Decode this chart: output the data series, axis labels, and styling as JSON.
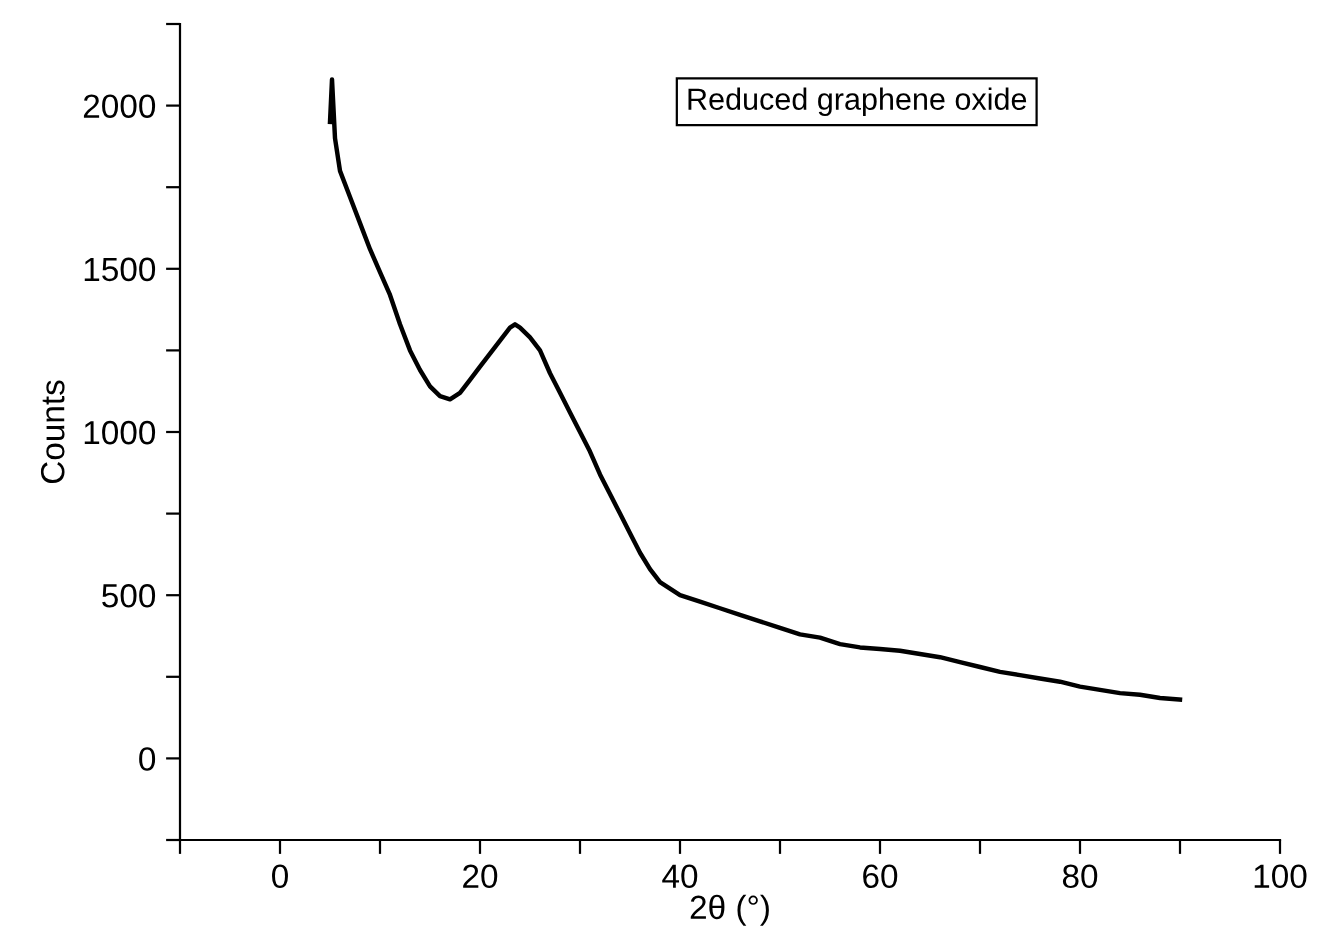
{
  "chart_data": {
    "type": "line",
    "xlabel": "2θ (°)",
    "ylabel": "Counts",
    "annotations": [
      "Reduced graphene oxide"
    ],
    "series": [
      {
        "color": "#000000",
        "x": [
          5,
          5.2,
          5.5,
          6,
          7,
          8,
          9,
          10,
          11,
          12,
          13,
          14,
          15,
          16,
          17,
          18,
          19,
          20,
          21,
          22,
          23,
          23.5,
          24,
          25,
          26,
          27,
          28,
          29,
          30,
          31,
          32,
          33,
          34,
          35,
          36,
          37,
          38,
          39,
          40,
          42,
          44,
          46,
          48,
          50,
          52,
          54,
          56,
          58,
          60,
          62,
          64,
          66,
          68,
          70,
          72,
          74,
          76,
          78,
          80,
          82,
          84,
          86,
          88,
          90
        ],
        "values": [
          1950,
          2080,
          1900,
          1800,
          1720,
          1640,
          1560,
          1490,
          1420,
          1330,
          1250,
          1190,
          1140,
          1110,
          1100,
          1120,
          1160,
          1200,
          1240,
          1280,
          1320,
          1330,
          1320,
          1290,
          1250,
          1180,
          1120,
          1060,
          1000,
          940,
          870,
          810,
          750,
          690,
          630,
          580,
          540,
          520,
          500,
          480,
          460,
          440,
          420,
          400,
          380,
          370,
          350,
          340,
          335,
          330,
          320,
          310,
          295,
          280,
          265,
          255,
          245,
          235,
          220,
          210,
          200,
          195,
          185,
          180
        ]
      }
    ],
    "xlim": [
      -10,
      100
    ],
    "xticks": [
      {
        "value": -10,
        "label": null
      },
      0,
      {
        "value": 10,
        "label": null
      },
      20,
      {
        "value": 30,
        "label": null
      },
      40,
      {
        "value": 50,
        "label": null
      },
      60,
      {
        "value": 70,
        "label": null
      },
      80,
      {
        "value": 90,
        "label": null
      },
      100
    ],
    "ylim": [
      -250,
      2250
    ],
    "yticks": [
      {
        "value": -250,
        "label": null
      },
      0,
      {
        "value": 250,
        "label": null
      },
      500,
      {
        "value": 750,
        "label": null
      },
      1000,
      {
        "value": 1250,
        "label": null
      },
      1500,
      {
        "value": 1750,
        "label": null
      },
      2000,
      {
        "value": 2250,
        "label": null
      }
    ],
    "grid": false,
    "legend": false,
    "marker": "none",
    "line_style": "solid"
  }
}
